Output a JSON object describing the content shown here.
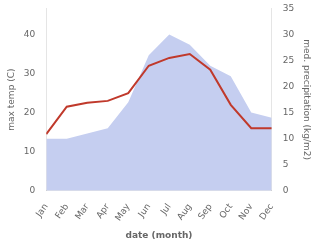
{
  "chart_data": {
    "type": "line",
    "categories": [
      "Jan",
      "Feb",
      "Mar",
      "Apr",
      "May",
      "Jun",
      "Jul",
      "Aug",
      "Sep",
      "Oct",
      "Nov",
      "Dec"
    ],
    "xlabel": "date (month)",
    "ylabel": "max temp (C)",
    "y2label": "med. precipitation (kg/m2)",
    "series": [
      {
        "type": "area",
        "color": "#c5cef0",
        "axis": "y2",
        "values": [
          10,
          10,
          11,
          12,
          17,
          26,
          30,
          28,
          24,
          22,
          15,
          14
        ]
      },
      {
        "type": "line",
        "color": "#c0392b",
        "values": [
          14.5,
          21.5,
          22.5,
          23,
          25,
          32,
          34,
          35,
          31,
          22,
          16,
          16
        ]
      }
    ],
    "ylim": [
      0,
      46.67
    ],
    "yticks": [
      0,
      10,
      20,
      30,
      40
    ],
    "y2lim": [
      0,
      35
    ],
    "y2ticks": [
      0,
      5,
      10,
      15,
      20,
      25,
      30,
      35
    ],
    "grid": false
  }
}
